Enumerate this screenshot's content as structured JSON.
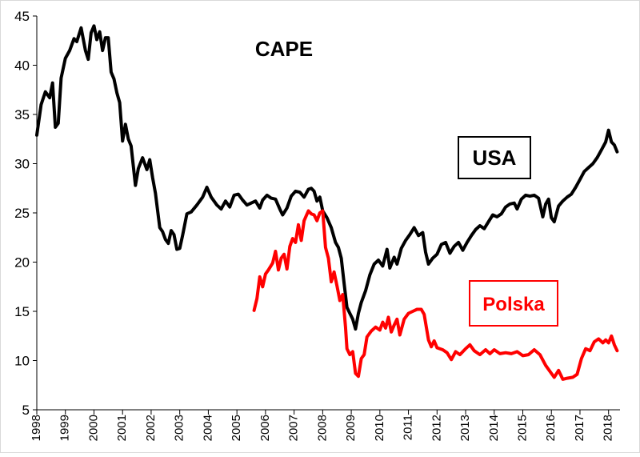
{
  "chart_data": {
    "type": "line",
    "title": "CAPE",
    "xlabel": "",
    "ylabel": "",
    "xlim": [
      1998.0,
      2018.4
    ],
    "ylim": [
      5,
      45
    ],
    "y_ticks": [
      "5",
      "10",
      "15",
      "20",
      "25",
      "30",
      "35",
      "40",
      "45"
    ],
    "x_ticks": [
      "1998",
      "1999",
      "2000",
      "2001",
      "2002",
      "2003",
      "2004",
      "2005",
      "2006",
      "2007",
      "2008",
      "2009",
      "2010",
      "2011",
      "2012",
      "2013",
      "2014",
      "2015",
      "2016",
      "2017",
      "2018"
    ],
    "grid": false,
    "series": [
      {
        "name": "USA",
        "color": "#000000",
        "points": [
          [
            1998.0,
            32.9
          ],
          [
            1998.15,
            36.0
          ],
          [
            1998.3,
            37.3
          ],
          [
            1998.45,
            36.7
          ],
          [
            1998.55,
            38.2
          ],
          [
            1998.65,
            33.7
          ],
          [
            1998.75,
            34.1
          ],
          [
            1998.85,
            38.7
          ],
          [
            1999.0,
            40.7
          ],
          [
            1999.15,
            41.5
          ],
          [
            1999.3,
            42.7
          ],
          [
            1999.4,
            42.4
          ],
          [
            1999.55,
            43.8
          ],
          [
            1999.7,
            41.5
          ],
          [
            1999.8,
            40.6
          ],
          [
            1999.9,
            43.3
          ],
          [
            2000.0,
            44.0
          ],
          [
            2000.1,
            42.6
          ],
          [
            2000.2,
            43.4
          ],
          [
            2000.3,
            41.5
          ],
          [
            2000.4,
            42.8
          ],
          [
            2000.5,
            42.8
          ],
          [
            2000.6,
            39.3
          ],
          [
            2000.7,
            38.6
          ],
          [
            2000.8,
            37.2
          ],
          [
            2000.9,
            36.2
          ],
          [
            2001.0,
            32.3
          ],
          [
            2001.1,
            34.0
          ],
          [
            2001.2,
            32.5
          ],
          [
            2001.3,
            31.8
          ],
          [
            2001.45,
            27.8
          ],
          [
            2001.55,
            29.5
          ],
          [
            2001.7,
            30.6
          ],
          [
            2001.85,
            29.4
          ],
          [
            2001.95,
            30.4
          ],
          [
            2002.05,
            28.6
          ],
          [
            2002.15,
            27.0
          ],
          [
            2002.3,
            23.5
          ],
          [
            2002.4,
            23.1
          ],
          [
            2002.5,
            22.3
          ],
          [
            2002.6,
            21.9
          ],
          [
            2002.7,
            23.2
          ],
          [
            2002.8,
            22.8
          ],
          [
            2002.9,
            21.3
          ],
          [
            2003.0,
            21.4
          ],
          [
            2003.1,
            22.7
          ],
          [
            2003.25,
            24.9
          ],
          [
            2003.4,
            25.1
          ],
          [
            2003.6,
            25.8
          ],
          [
            2003.8,
            26.6
          ],
          [
            2003.95,
            27.6
          ],
          [
            2004.1,
            26.6
          ],
          [
            2004.3,
            25.8
          ],
          [
            2004.45,
            25.4
          ],
          [
            2004.6,
            26.2
          ],
          [
            2004.75,
            25.6
          ],
          [
            2004.9,
            26.8
          ],
          [
            2005.05,
            26.9
          ],
          [
            2005.2,
            26.3
          ],
          [
            2005.35,
            25.8
          ],
          [
            2005.5,
            26.0
          ],
          [
            2005.65,
            26.2
          ],
          [
            2005.8,
            25.5
          ],
          [
            2005.9,
            26.3
          ],
          [
            2006.05,
            26.8
          ],
          [
            2006.2,
            26.5
          ],
          [
            2006.35,
            26.4
          ],
          [
            2006.5,
            25.4
          ],
          [
            2006.6,
            24.8
          ],
          [
            2006.75,
            25.5
          ],
          [
            2006.9,
            26.7
          ],
          [
            2007.05,
            27.2
          ],
          [
            2007.2,
            27.1
          ],
          [
            2007.35,
            26.6
          ],
          [
            2007.5,
            27.4
          ],
          [
            2007.6,
            27.5
          ],
          [
            2007.7,
            27.2
          ],
          [
            2007.8,
            26.2
          ],
          [
            2007.9,
            26.6
          ],
          [
            2008.0,
            25.2
          ],
          [
            2008.15,
            24.5
          ],
          [
            2008.3,
            23.5
          ],
          [
            2008.45,
            22.0
          ],
          [
            2008.55,
            21.5
          ],
          [
            2008.65,
            20.4
          ],
          [
            2008.75,
            17.8
          ],
          [
            2008.85,
            15.4
          ],
          [
            2008.95,
            14.8
          ],
          [
            2009.05,
            14.2
          ],
          [
            2009.15,
            13.2
          ],
          [
            2009.25,
            14.8
          ],
          [
            2009.35,
            15.9
          ],
          [
            2009.5,
            17.1
          ],
          [
            2009.65,
            18.7
          ],
          [
            2009.8,
            19.8
          ],
          [
            2009.95,
            20.2
          ],
          [
            2010.1,
            19.6
          ],
          [
            2010.25,
            21.3
          ],
          [
            2010.35,
            19.4
          ],
          [
            2010.5,
            20.5
          ],
          [
            2010.6,
            19.8
          ],
          [
            2010.75,
            21.4
          ],
          [
            2010.9,
            22.2
          ],
          [
            2011.05,
            22.8
          ],
          [
            2011.2,
            23.5
          ],
          [
            2011.35,
            22.7
          ],
          [
            2011.5,
            23.0
          ],
          [
            2011.6,
            21.0
          ],
          [
            2011.7,
            19.8
          ],
          [
            2011.85,
            20.4
          ],
          [
            2012.0,
            20.8
          ],
          [
            2012.15,
            21.8
          ],
          [
            2012.3,
            22.0
          ],
          [
            2012.45,
            20.9
          ],
          [
            2012.6,
            21.6
          ],
          [
            2012.75,
            22.0
          ],
          [
            2012.9,
            21.2
          ],
          [
            2013.05,
            22.0
          ],
          [
            2013.2,
            22.7
          ],
          [
            2013.35,
            23.3
          ],
          [
            2013.5,
            23.7
          ],
          [
            2013.65,
            23.4
          ],
          [
            2013.8,
            24.1
          ],
          [
            2013.95,
            24.8
          ],
          [
            2014.1,
            24.6
          ],
          [
            2014.25,
            24.9
          ],
          [
            2014.4,
            25.6
          ],
          [
            2014.55,
            25.9
          ],
          [
            2014.7,
            26.0
          ],
          [
            2014.8,
            25.4
          ],
          [
            2014.95,
            26.4
          ],
          [
            2015.1,
            26.8
          ],
          [
            2015.25,
            26.7
          ],
          [
            2015.4,
            26.8
          ],
          [
            2015.55,
            26.5
          ],
          [
            2015.7,
            24.6
          ],
          [
            2015.8,
            25.9
          ],
          [
            2015.9,
            26.4
          ],
          [
            2016.0,
            24.5
          ],
          [
            2016.1,
            24.1
          ],
          [
            2016.25,
            25.7
          ],
          [
            2016.4,
            26.2
          ],
          [
            2016.55,
            26.6
          ],
          [
            2016.7,
            26.9
          ],
          [
            2016.85,
            27.6
          ],
          [
            2017.0,
            28.4
          ],
          [
            2017.15,
            29.2
          ],
          [
            2017.3,
            29.6
          ],
          [
            2017.45,
            30.0
          ],
          [
            2017.6,
            30.6
          ],
          [
            2017.75,
            31.4
          ],
          [
            2017.9,
            32.2
          ],
          [
            2018.0,
            33.4
          ],
          [
            2018.1,
            32.2
          ],
          [
            2018.2,
            31.9
          ],
          [
            2018.3,
            31.2
          ]
        ]
      },
      {
        "name": "Polska",
        "color": "#ff0000",
        "points": [
          [
            2005.6,
            15.1
          ],
          [
            2005.7,
            16.3
          ],
          [
            2005.8,
            18.5
          ],
          [
            2005.9,
            17.5
          ],
          [
            2006.0,
            18.8
          ],
          [
            2006.1,
            19.2
          ],
          [
            2006.25,
            19.9
          ],
          [
            2006.35,
            21.1
          ],
          [
            2006.45,
            19.2
          ],
          [
            2006.55,
            20.4
          ],
          [
            2006.65,
            20.8
          ],
          [
            2006.75,
            19.3
          ],
          [
            2006.85,
            21.6
          ],
          [
            2006.95,
            22.4
          ],
          [
            2007.05,
            22.0
          ],
          [
            2007.15,
            23.8
          ],
          [
            2007.25,
            22.2
          ],
          [
            2007.35,
            24.2
          ],
          [
            2007.5,
            25.2
          ],
          [
            2007.6,
            24.9
          ],
          [
            2007.7,
            24.8
          ],
          [
            2007.8,
            24.2
          ],
          [
            2007.9,
            25.0
          ],
          [
            2008.0,
            25.2
          ],
          [
            2008.1,
            21.5
          ],
          [
            2008.2,
            20.4
          ],
          [
            2008.3,
            18.0
          ],
          [
            2008.4,
            19.0
          ],
          [
            2008.5,
            17.6
          ],
          [
            2008.6,
            16.1
          ],
          [
            2008.7,
            16.7
          ],
          [
            2008.8,
            13.4
          ],
          [
            2008.85,
            11.2
          ],
          [
            2008.95,
            10.6
          ],
          [
            2009.05,
            10.9
          ],
          [
            2009.15,
            8.7
          ],
          [
            2009.25,
            8.4
          ],
          [
            2009.35,
            10.2
          ],
          [
            2009.45,
            10.6
          ],
          [
            2009.55,
            12.4
          ],
          [
            2009.7,
            13.0
          ],
          [
            2009.85,
            13.4
          ],
          [
            2010.0,
            13.1
          ],
          [
            2010.1,
            13.9
          ],
          [
            2010.2,
            13.3
          ],
          [
            2010.3,
            14.4
          ],
          [
            2010.4,
            12.9
          ],
          [
            2010.5,
            13.6
          ],
          [
            2010.6,
            14.2
          ],
          [
            2010.7,
            12.6
          ],
          [
            2010.85,
            14.2
          ],
          [
            2011.0,
            14.8
          ],
          [
            2011.15,
            15.0
          ],
          [
            2011.3,
            15.2
          ],
          [
            2011.45,
            15.2
          ],
          [
            2011.55,
            14.7
          ],
          [
            2011.7,
            12.1
          ],
          [
            2011.8,
            11.4
          ],
          [
            2011.9,
            12.0
          ],
          [
            2012.0,
            11.3
          ],
          [
            2012.2,
            11.1
          ],
          [
            2012.35,
            10.8
          ],
          [
            2012.5,
            10.1
          ],
          [
            2012.65,
            10.9
          ],
          [
            2012.8,
            10.6
          ],
          [
            2013.0,
            11.2
          ],
          [
            2013.15,
            11.6
          ],
          [
            2013.3,
            11.0
          ],
          [
            2013.5,
            10.6
          ],
          [
            2013.7,
            11.1
          ],
          [
            2013.85,
            10.7
          ],
          [
            2014.0,
            11.1
          ],
          [
            2014.2,
            10.7
          ],
          [
            2014.4,
            10.8
          ],
          [
            2014.6,
            10.7
          ],
          [
            2014.8,
            10.9
          ],
          [
            2015.0,
            10.5
          ],
          [
            2015.2,
            10.6
          ],
          [
            2015.4,
            11.1
          ],
          [
            2015.6,
            10.6
          ],
          [
            2015.8,
            9.5
          ],
          [
            2016.0,
            8.7
          ],
          [
            2016.1,
            8.3
          ],
          [
            2016.25,
            9.0
          ],
          [
            2016.4,
            8.1
          ],
          [
            2016.55,
            8.2
          ],
          [
            2016.75,
            8.3
          ],
          [
            2016.9,
            8.6
          ],
          [
            2017.05,
            10.2
          ],
          [
            2017.2,
            11.2
          ],
          [
            2017.35,
            11.0
          ],
          [
            2017.5,
            11.9
          ],
          [
            2017.65,
            12.2
          ],
          [
            2017.8,
            11.8
          ],
          [
            2017.9,
            12.1
          ],
          [
            2018.0,
            11.8
          ],
          [
            2018.1,
            12.5
          ],
          [
            2018.2,
            11.6
          ],
          [
            2018.3,
            11.0
          ]
        ]
      }
    ],
    "labels": [
      {
        "text": "USA",
        "boxed": true,
        "color": "#000000",
        "near_series": "USA"
      },
      {
        "text": "Polska",
        "boxed": true,
        "color": "#ff0000",
        "near_series": "Polska"
      }
    ]
  }
}
